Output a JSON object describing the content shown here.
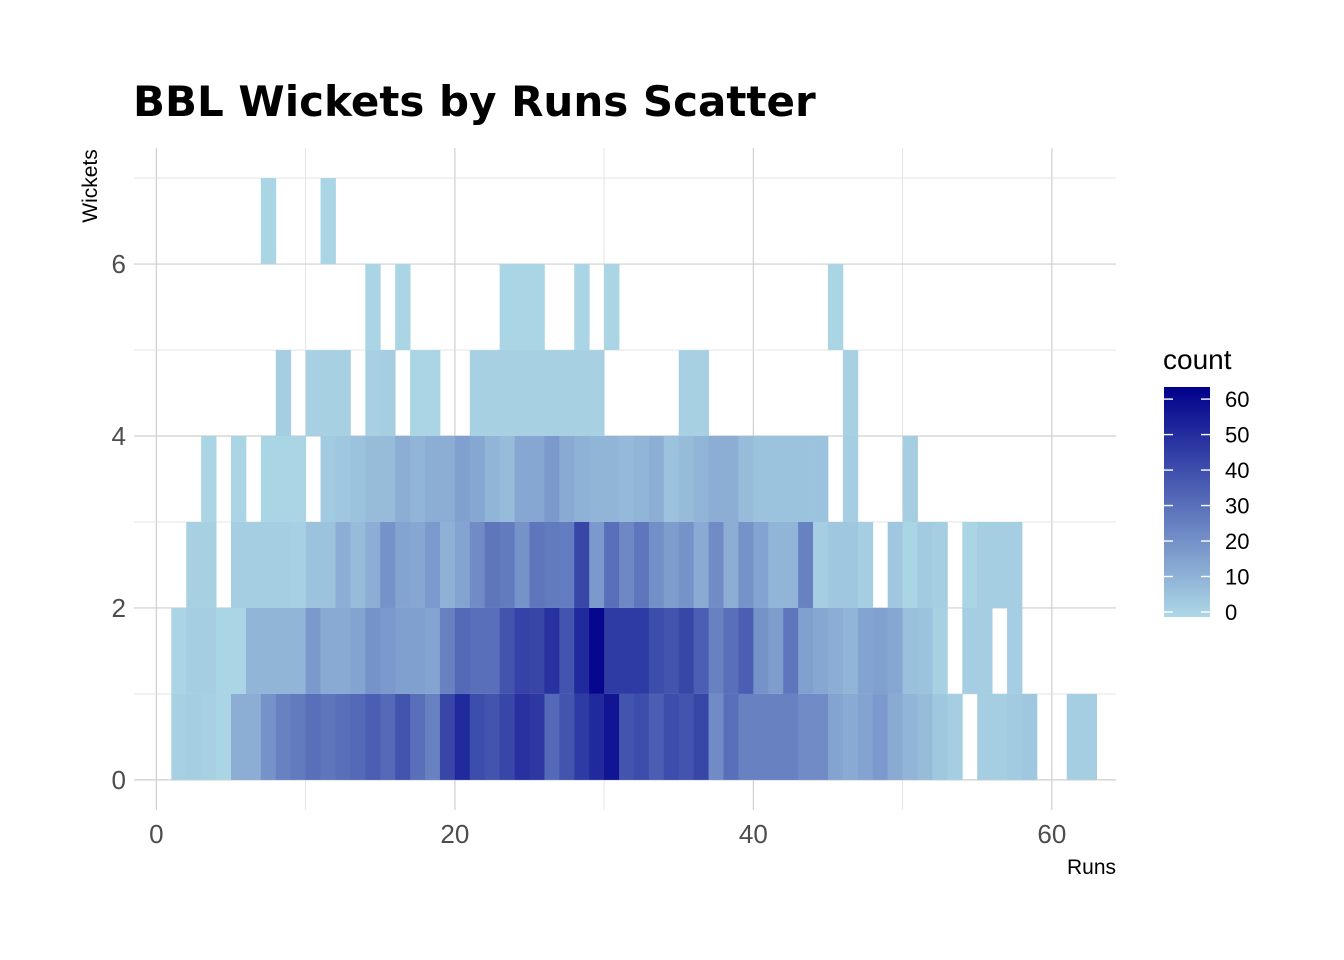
{
  "chart_data": {
    "type": "heatmap",
    "title": "BBL Wickets by Runs Scatter",
    "xlabel": "Runs",
    "ylabel": "Wickets",
    "xlim": [
      -1.5,
      64.3
    ],
    "ylim": [
      -0.35,
      7.35
    ],
    "x_ticks": [
      0,
      20,
      40,
      60
    ],
    "y_ticks": [
      0,
      2,
      4,
      6
    ],
    "bin_width_x": 1,
    "bin_height_y": 1,
    "grid": true,
    "legend": {
      "title": "count",
      "position": "right",
      "min": 0,
      "max": 62,
      "ticks": [
        0,
        10,
        20,
        30,
        40,
        50,
        60
      ],
      "low_color": "#ADD8E6",
      "high_color": "#00008B"
    },
    "rows": [
      {
        "y_from": 0,
        "y_to": 1,
        "x_start": 1,
        "counts": [
          2,
          3,
          2,
          1,
          12,
          12,
          20,
          25,
          27,
          30,
          28,
          30,
          32,
          35,
          32,
          38,
          30,
          25,
          42,
          50,
          40,
          38,
          42,
          48,
          46,
          32,
          38,
          45,
          50,
          56,
          38,
          40,
          35,
          40,
          38,
          42,
          22,
          30,
          25,
          25,
          25,
          25,
          22,
          22,
          15,
          13,
          15,
          18,
          13,
          10,
          8,
          5,
          3,
          -1,
          3,
          3,
          4,
          5,
          -1,
          -1,
          3,
          3
        ]
      },
      {
        "y_from": 1,
        "y_to": 2,
        "x_start": 1,
        "counts": [
          1,
          3,
          3,
          1,
          1,
          10,
          10,
          10,
          10,
          18,
          13,
          13,
          15,
          20,
          18,
          16,
          16,
          15,
          25,
          32,
          30,
          30,
          38,
          43,
          42,
          48,
          38,
          50,
          60,
          45,
          45,
          45,
          40,
          38,
          42,
          35,
          25,
          30,
          35,
          20,
          17,
          28,
          16,
          14,
          12,
          10,
          15,
          16,
          14,
          7,
          6,
          2,
          -1,
          3,
          3,
          -1,
          3,
          -1,
          -1,
          -1,
          -1
        ]
      },
      {
        "y_from": 2,
        "y_to": 3,
        "x_start": 2,
        "counts": [
          2,
          2,
          -1,
          3,
          3,
          3,
          3,
          2,
          6,
          6,
          12,
          8,
          12,
          20,
          15,
          14,
          18,
          11,
          15,
          22,
          28,
          27,
          20,
          28,
          27,
          26,
          42,
          18,
          30,
          23,
          28,
          21,
          17,
          20,
          13,
          22,
          12,
          20,
          15,
          10,
          10,
          25,
          3,
          5,
          5,
          3,
          -1,
          5,
          1,
          4,
          3,
          -1,
          1,
          3,
          3,
          3
        ]
      },
      {
        "y_from": 3,
        "y_to": 4,
        "x_start": 3,
        "counts": [
          1,
          -1,
          1,
          -1,
          1,
          1,
          1,
          -1,
          4,
          5,
          6,
          8,
          8,
          12,
          10,
          12,
          12,
          16,
          14,
          10,
          8,
          14,
          14,
          18,
          13,
          11,
          10,
          10,
          9,
          10,
          12,
          6,
          8,
          10,
          12,
          12,
          8,
          6,
          6,
          6,
          6,
          6,
          -1,
          3,
          -1,
          -1,
          -1,
          3
        ]
      },
      {
        "y_from": 4,
        "y_to": 5,
        "x_start": 8,
        "counts": [
          3,
          -1,
          2,
          2,
          2,
          -1,
          2,
          3,
          -1,
          1,
          1,
          -1,
          -1,
          2,
          2,
          2,
          2,
          2,
          2,
          2,
          2,
          2,
          -1,
          -1,
          -1,
          -1,
          -1,
          2,
          2,
          -1,
          -1,
          -1,
          -1,
          -1,
          -1,
          -1,
          -1,
          -1,
          2
        ]
      },
      {
        "y_from": 5,
        "y_to": 6,
        "x_start": 14,
        "counts": [
          1,
          -1,
          1,
          -1,
          -1,
          -1,
          -1,
          -1,
          -1,
          1,
          1,
          1,
          -1,
          -1,
          1,
          -1,
          1,
          -1,
          -1,
          -1,
          -1,
          -1,
          -1,
          -1,
          -1,
          -1,
          -1,
          -1,
          -1,
          -1,
          -1,
          1
        ]
      },
      {
        "y_from": 6,
        "y_to": 7,
        "x_start": 7,
        "counts": [
          1,
          -1,
          -1,
          -1,
          1
        ]
      }
    ]
  }
}
